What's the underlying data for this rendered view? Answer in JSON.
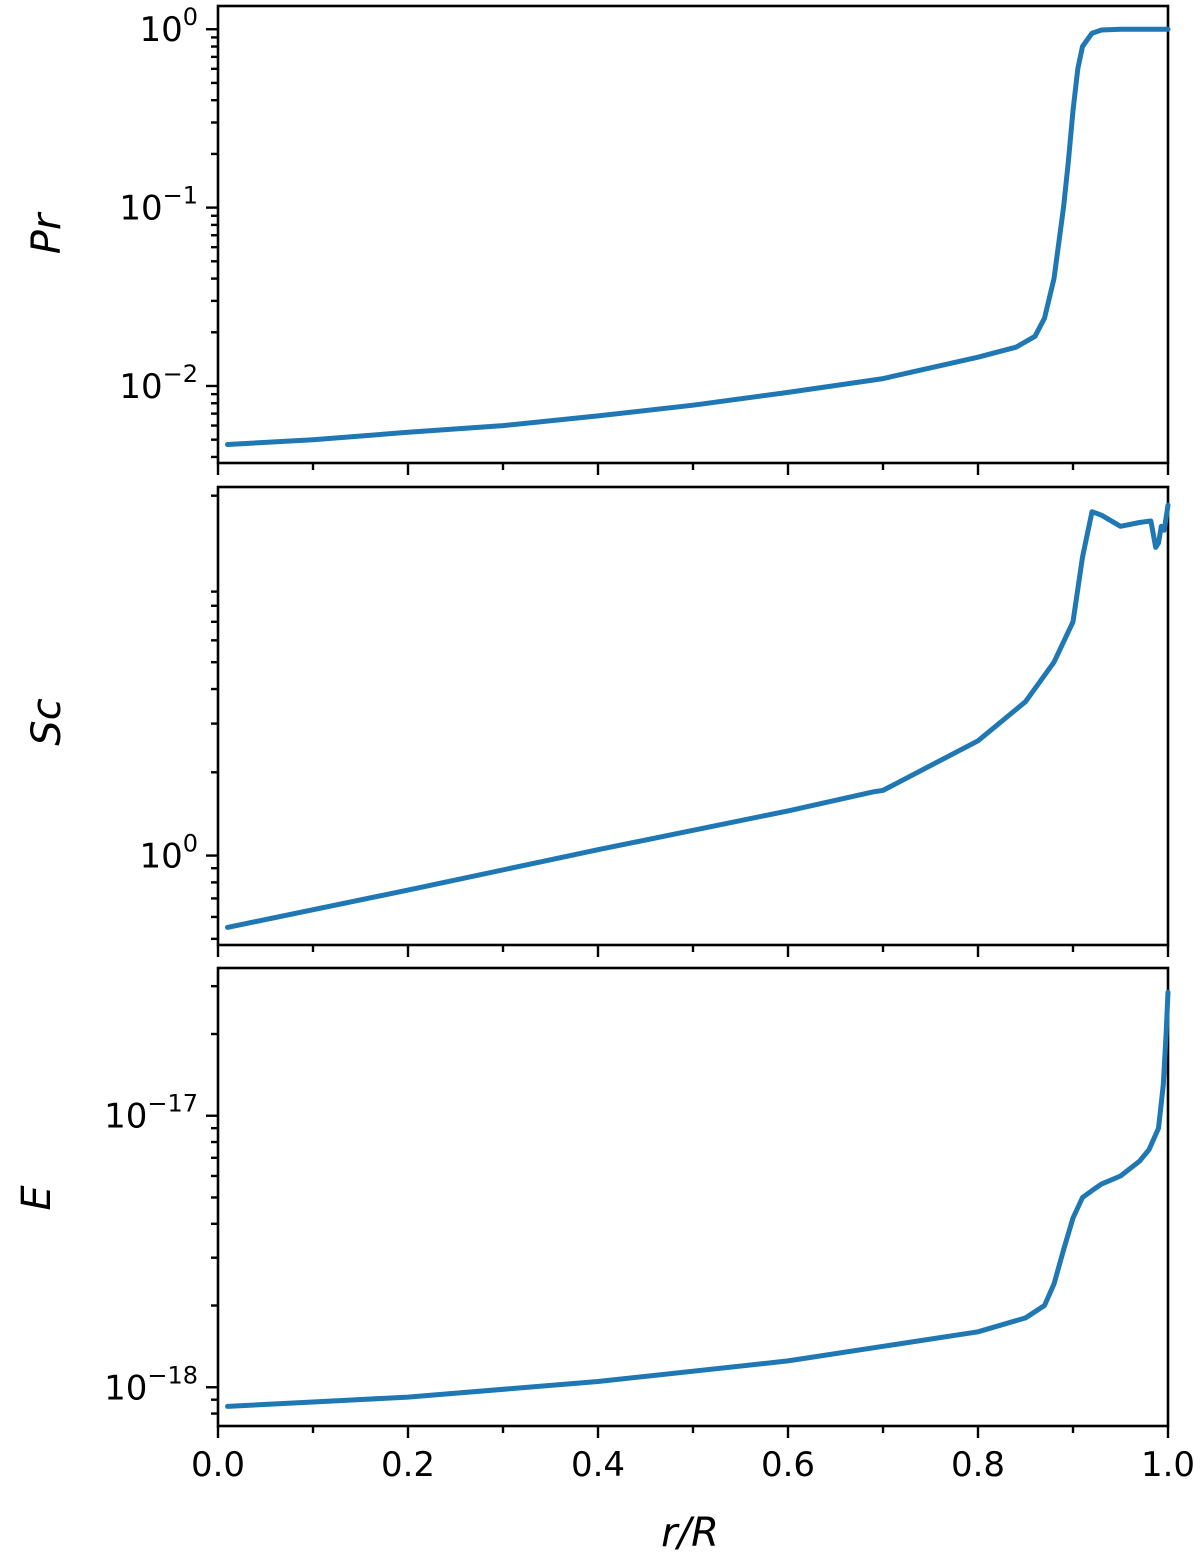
{
  "chart_data": [
    {
      "type": "line",
      "ylabel": "Pr",
      "xlabel": "",
      "yscale": "log",
      "xlim": [
        0.0,
        1.0
      ],
      "ylim": [
        0.0037,
        1.35
      ],
      "yticks": [
        {
          "value": 0.01,
          "base": "10",
          "exp": "−2"
        },
        {
          "value": 0.1,
          "base": "10",
          "exp": "−1"
        },
        {
          "value": 1,
          "base": "10",
          "exp": "0"
        }
      ],
      "grid": false,
      "series": [
        {
          "color": "#1f77b4",
          "x": [
            0.01,
            0.1,
            0.2,
            0.3,
            0.4,
            0.5,
            0.6,
            0.7,
            0.8,
            0.84,
            0.86,
            0.87,
            0.88,
            0.89,
            0.895,
            0.9,
            0.905,
            0.91,
            0.92,
            0.93,
            0.95,
            1.0
          ],
          "y": [
            0.0047,
            0.005,
            0.0055,
            0.006,
            0.0068,
            0.0078,
            0.0092,
            0.011,
            0.0145,
            0.0165,
            0.019,
            0.024,
            0.04,
            0.1,
            0.18,
            0.35,
            0.6,
            0.8,
            0.95,
            0.99,
            1.0,
            1.0
          ]
        }
      ]
    },
    {
      "type": "line",
      "ylabel": "Sc",
      "xlabel": "",
      "yscale": "log",
      "xlim": [
        0.0,
        1.0
      ],
      "ylim": [
        0.475,
        21.5
      ],
      "yticks": [
        {
          "value": 1,
          "base": "10",
          "exp": "0"
        }
      ],
      "grid": false,
      "series": [
        {
          "color": "#1f77b4",
          "x": [
            0.01,
            0.2,
            0.4,
            0.6,
            0.69,
            0.7,
            0.8,
            0.85,
            0.88,
            0.9,
            0.91,
            0.92,
            0.93,
            0.95,
            0.97,
            0.982,
            0.987,
            0.99,
            0.993,
            0.996,
            1.0
          ],
          "y": [
            0.55,
            0.75,
            1.05,
            1.45,
            1.7,
            1.72,
            2.6,
            3.6,
            5.0,
            7.0,
            12.0,
            17.5,
            17.0,
            15.5,
            16.0,
            16.2,
            13.0,
            13.5,
            15.5,
            15.0,
            18.5
          ]
        }
      ]
    },
    {
      "type": "line",
      "ylabel": "E",
      "xlabel": "r/R",
      "yscale": "log",
      "xlim": [
        0.0,
        1.0
      ],
      "ylim": [
        7.2e-19,
        3.5e-17
      ],
      "yticks": [
        {
          "value": 1e-18,
          "base": "10",
          "exp": "−18"
        },
        {
          "value": 1e-17,
          "base": "10",
          "exp": "−17"
        }
      ],
      "xticks": [
        "0.0",
        "0.2",
        "0.4",
        "0.6",
        "0.8",
        "1.0"
      ],
      "grid": false,
      "series": [
        {
          "color": "#1f77b4",
          "x": [
            0.01,
            0.2,
            0.4,
            0.6,
            0.8,
            0.85,
            0.87,
            0.88,
            0.89,
            0.9,
            0.91,
            0.92,
            0.93,
            0.95,
            0.97,
            0.98,
            0.99,
            0.995,
            0.998,
            1.0
          ],
          "y": [
            8.5e-19,
            9.2e-19,
            1.05e-18,
            1.25e-18,
            1.6e-18,
            1.8e-18,
            2e-18,
            2.4e-18,
            3.2e-18,
            4.2e-18,
            5e-18,
            5.3e-18,
            5.6e-18,
            6e-18,
            6.8e-18,
            7.5e-18,
            9e-18,
            1.3e-17,
            2e-17,
            2.85e-17
          ]
        }
      ]
    }
  ]
}
